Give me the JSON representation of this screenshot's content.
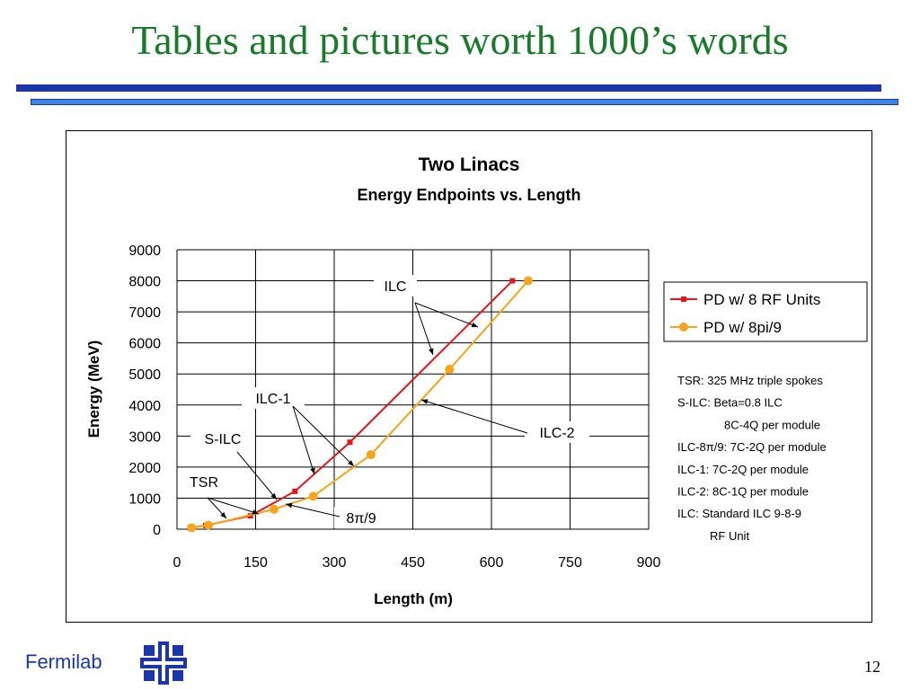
{
  "slide": {
    "title": "Tables and pictures worth 1000’s words",
    "footer": "Fermilab",
    "page_number": "12"
  },
  "colors": {
    "title": "#1a7a2c",
    "rule_dark": "#1c35a8",
    "rule_light": "#3a86e0",
    "series_rf": "#e8141c",
    "series_pi": "#f7a51c"
  },
  "icons": {
    "logo": "fermilab-logo-icon"
  },
  "chart_data": {
    "type": "line",
    "title": "Two Linacs",
    "subtitle": "Energy Endpoints vs. Length",
    "xlabel": "Length (m)",
    "ylabel": "Energy (MeV)",
    "xlim": [
      0,
      900
    ],
    "ylim": [
      0,
      9000
    ],
    "xticks": [
      0,
      150,
      300,
      450,
      600,
      750,
      900
    ],
    "yticks": [
      0,
      1000,
      2000,
      3000,
      4000,
      5000,
      6000,
      7000,
      8000,
      9000
    ],
    "grid": true,
    "legend_position": "right",
    "series": [
      {
        "name": "PD w/ 8 RF Units",
        "marker": "square",
        "color": "#e8141c",
        "x": [
          25,
          55,
          140,
          225,
          330,
          640
        ],
        "y": [
          40,
          120,
          430,
          1220,
          2800,
          8000
        ]
      },
      {
        "name": "PD w/ 8pi/9",
        "marker": "circle",
        "color": "#f7a51c",
        "x": [
          28,
          60,
          185,
          260,
          370,
          520,
          670
        ],
        "y": [
          45,
          130,
          640,
          1060,
          2400,
          5150,
          8000
        ]
      }
    ],
    "annotations": [
      {
        "label": "ILC",
        "mono": true
      },
      {
        "label": "ILC-1",
        "mono": true
      },
      {
        "label": "S-ILC",
        "mono": true
      },
      {
        "label": "TSR",
        "mono": true
      },
      {
        "label": "ILC-2",
        "mono": true
      },
      {
        "label": "8π/9",
        "mono": false
      }
    ],
    "notes": [
      "TSR: 325 MHz triple spokes",
      "S-ILC: Beta=0.8 ILC",
      "8C-4Q per module",
      "ILC-8π/9: 7C-2Q per module",
      "ILC-1: 7C-2Q per module",
      "ILC-2: 8C-1Q per module",
      "ILC: Standard ILC 9-8-9",
      "RF Unit"
    ]
  }
}
